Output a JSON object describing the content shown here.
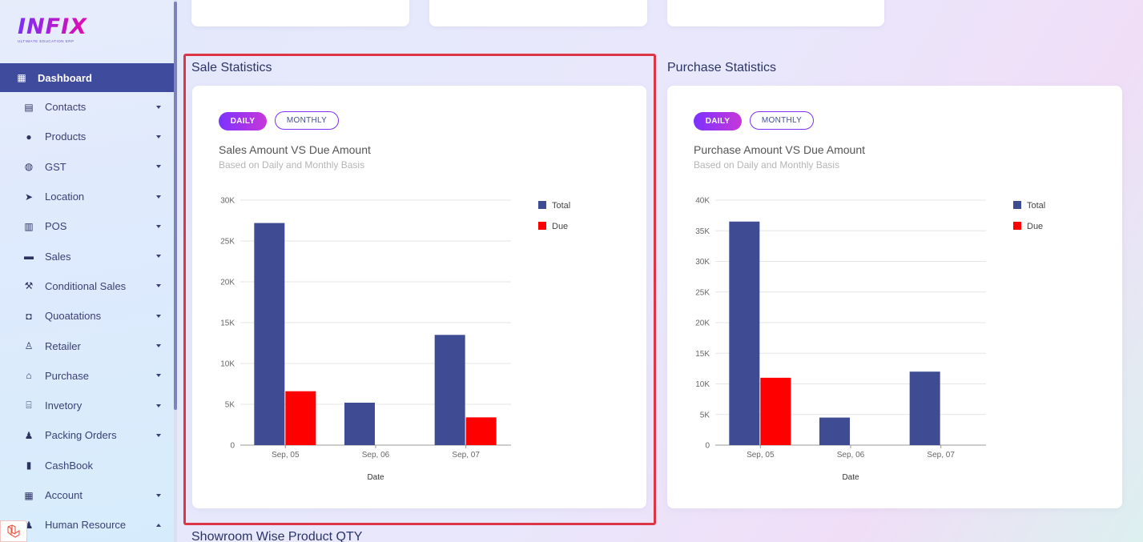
{
  "app": {
    "brand": "INFIX",
    "tagline": "ULTIMATE EDUCATION ERP"
  },
  "sidebar": {
    "items": [
      {
        "label": "Dashboard",
        "icon": "grid-icon",
        "active": true
      },
      {
        "label": "Contacts",
        "icon": "contact-book-icon"
      },
      {
        "label": "Products",
        "icon": "product-icon"
      },
      {
        "label": "GST",
        "icon": "money-icon"
      },
      {
        "label": "Location",
        "icon": "location-arrow-icon"
      },
      {
        "label": "POS",
        "icon": "cash-register-icon"
      },
      {
        "label": "Sales",
        "icon": "store-icon"
      },
      {
        "label": "Conditional Sales",
        "icon": "gavel-icon"
      },
      {
        "label": "Quoatations",
        "icon": "mug-icon"
      },
      {
        "label": "Retailer",
        "icon": "person-pin-icon"
      },
      {
        "label": "Purchase",
        "icon": "shop-icon"
      },
      {
        "label": "Invetory",
        "icon": "bank-icon"
      },
      {
        "label": "Packing Orders",
        "icon": "users-icon"
      },
      {
        "label": "CashBook",
        "icon": "book-icon"
      },
      {
        "label": "Account",
        "icon": "calculator-icon"
      },
      {
        "label": "Human Resource",
        "icon": "users-icon"
      }
    ]
  },
  "sale_section": {
    "title": "Sale Statistics",
    "daily_label": "DAILY",
    "monthly_label": "MONTHLY",
    "heading": "Sales Amount VS Due Amount",
    "subheading": "Based on Daily and Monthly Basis"
  },
  "purchase_section": {
    "title": "Purchase Statistics",
    "daily_label": "DAILY",
    "monthly_label": "MONTHLY",
    "heading": "Purchase Amount VS Due Amount",
    "subheading": "Based on Daily and Monthly Basis"
  },
  "showroom_section": {
    "title": "Showroom Wise Product QTY"
  },
  "colors": {
    "total": "#3f4c93",
    "due": "#ff0000",
    "accent": "#7c32ff",
    "highlight": "#dc3545"
  },
  "chart_data": [
    {
      "type": "bar",
      "title": "Sales Amount VS Due Amount",
      "xlabel": "Date",
      "ylabel": "",
      "categories": [
        "Sep, 05",
        "Sep, 06",
        "Sep, 07"
      ],
      "series": [
        {
          "name": "Total",
          "values": [
            27200,
            5200,
            13500
          ]
        },
        {
          "name": "Due",
          "values": [
            6600,
            0,
            3400
          ]
        }
      ],
      "ylim": [
        0,
        30000
      ],
      "yticks": [
        0,
        5000,
        10000,
        15000,
        20000,
        25000,
        30000
      ],
      "ytick_labels": [
        "0",
        "5K",
        "10K",
        "15K",
        "20K",
        "25K",
        "30K"
      ],
      "legend": "top-right"
    },
    {
      "type": "bar",
      "title": "Purchase Amount VS Due Amount",
      "xlabel": "Date",
      "ylabel": "",
      "categories": [
        "Sep, 05",
        "Sep, 06",
        "Sep, 07"
      ],
      "series": [
        {
          "name": "Total",
          "values": [
            36500,
            4500,
            12000
          ]
        },
        {
          "name": "Due",
          "values": [
            11000,
            0,
            0
          ]
        }
      ],
      "ylim": [
        0,
        40000
      ],
      "yticks": [
        0,
        5000,
        10000,
        15000,
        20000,
        25000,
        30000,
        35000,
        40000
      ],
      "ytick_labels": [
        "0",
        "5K",
        "10K",
        "15K",
        "20K",
        "25K",
        "30K",
        "35K",
        "40K"
      ],
      "legend": "top-right"
    }
  ]
}
